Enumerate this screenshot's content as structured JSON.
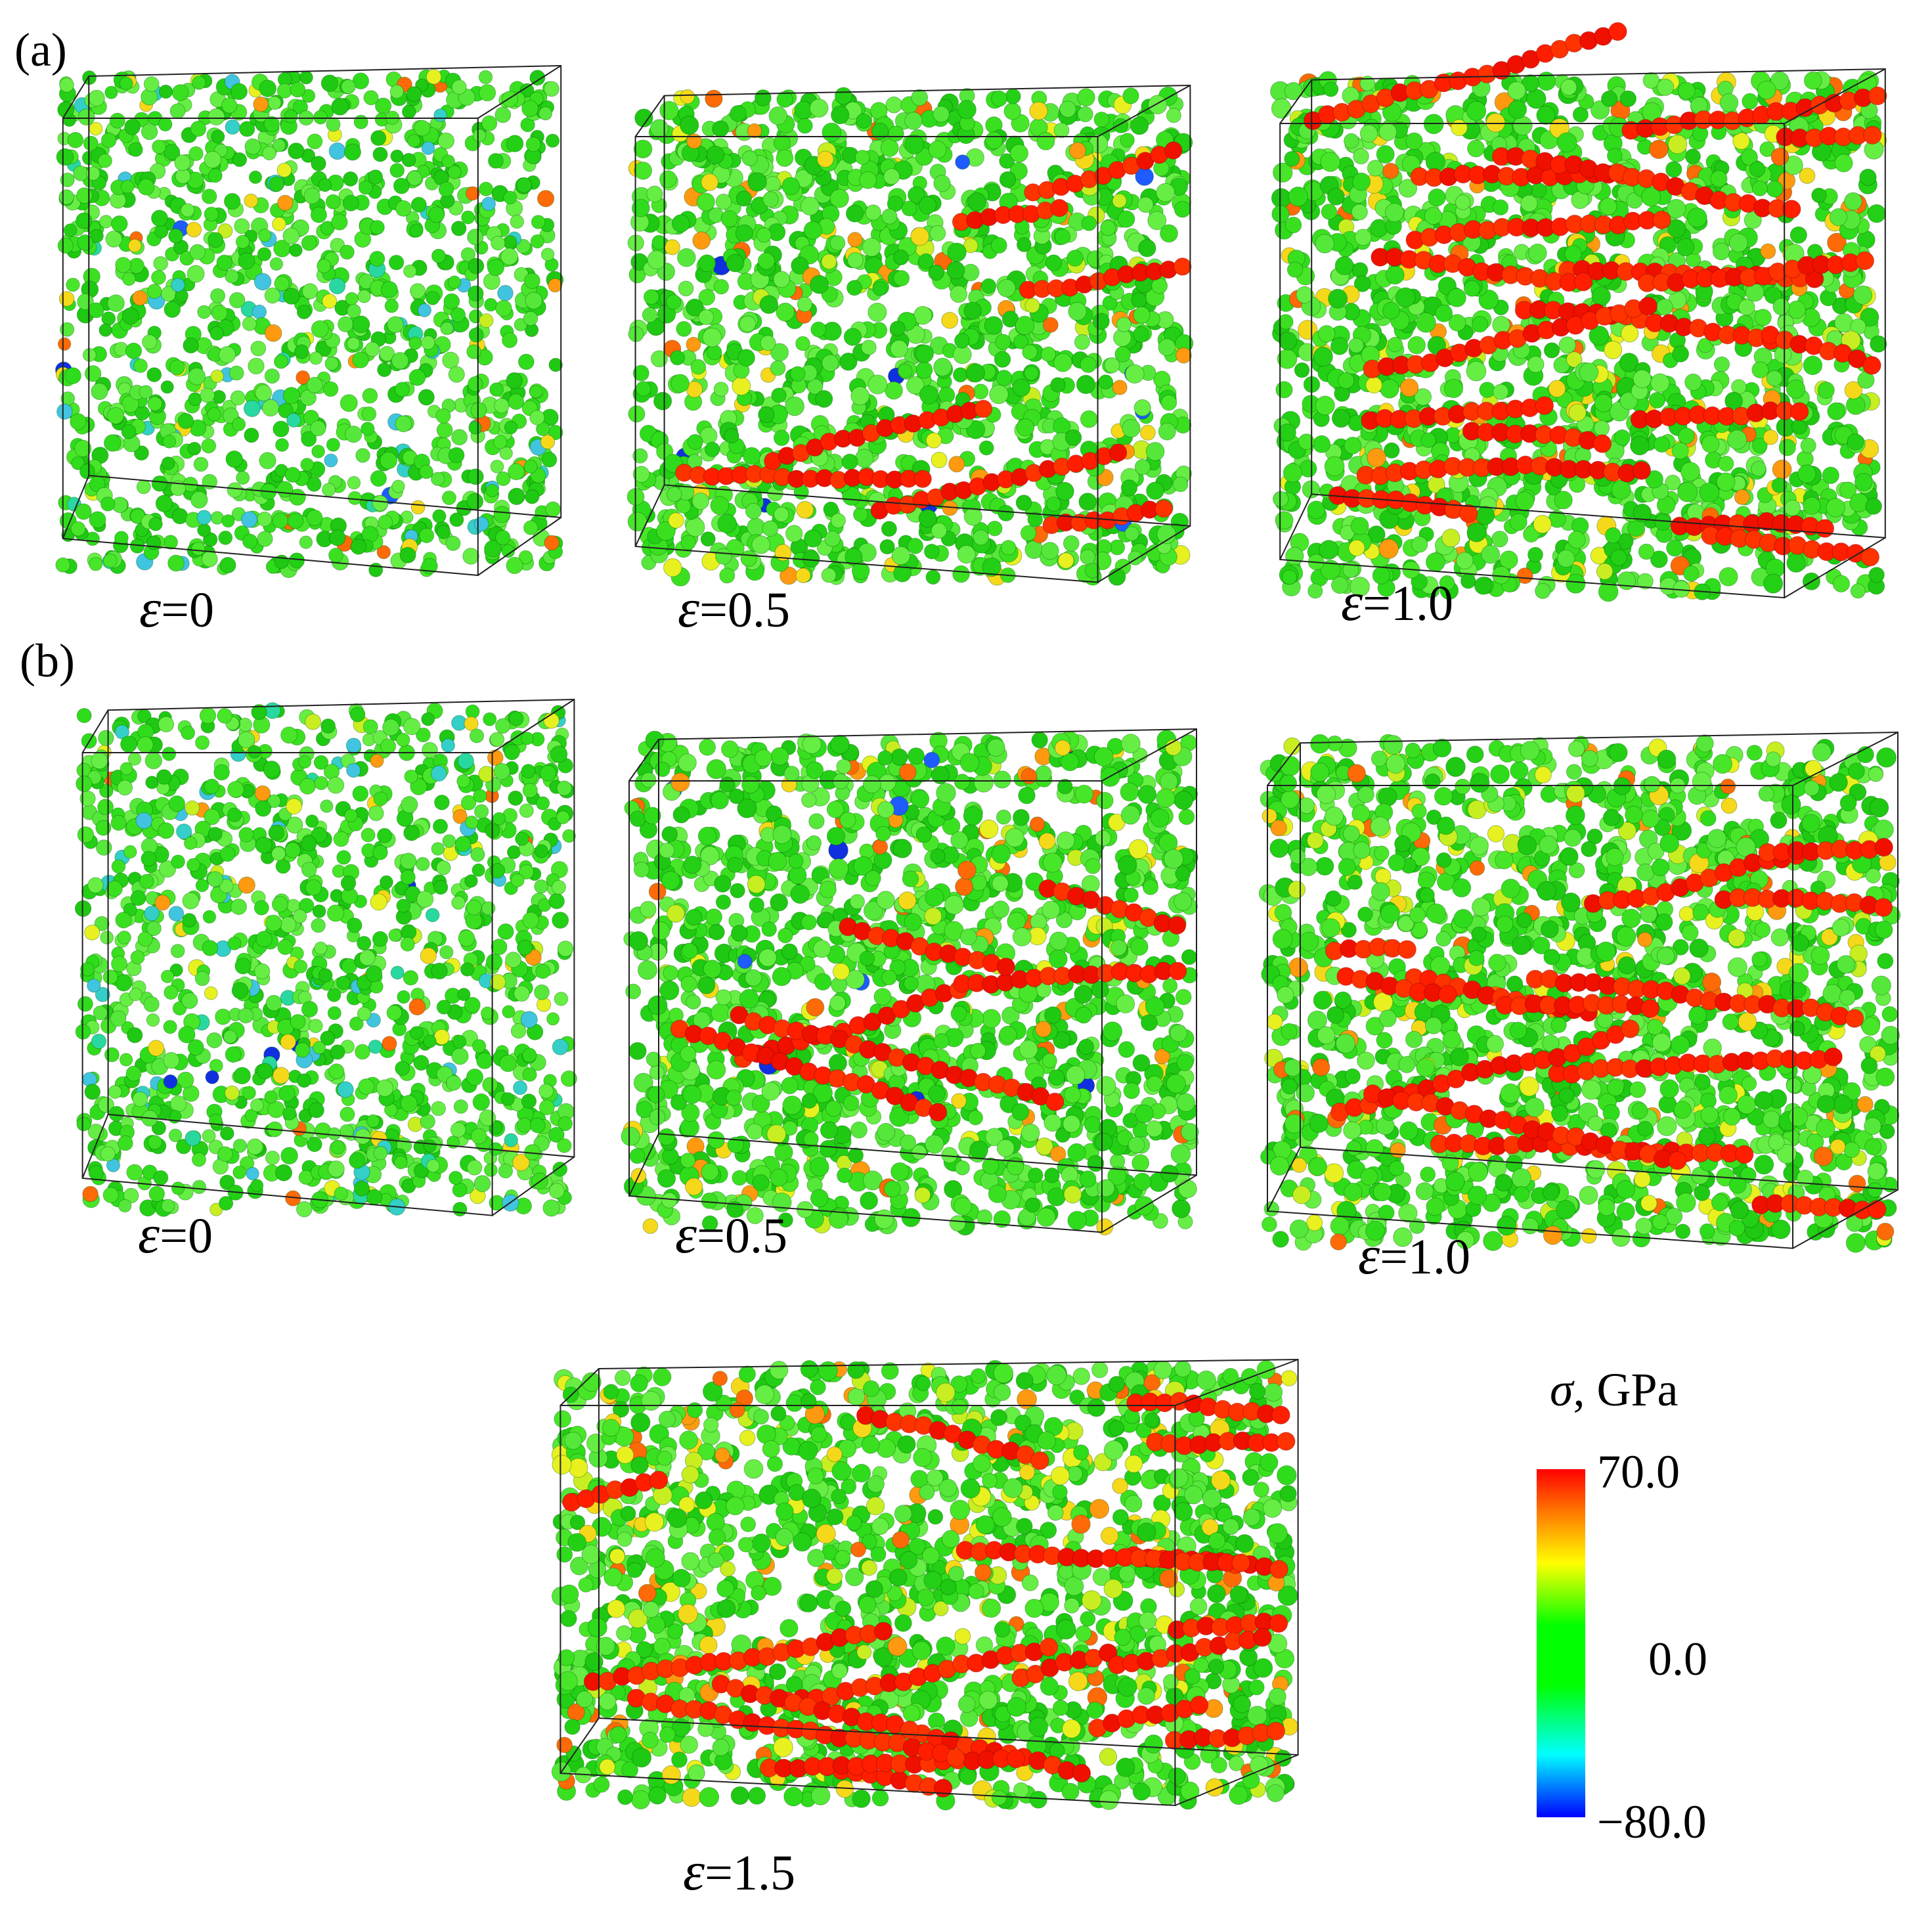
{
  "panels": {
    "a": {
      "label": "(a)"
    },
    "b": {
      "label": "(b)"
    }
  },
  "snapshots": [
    {
      "id": "a0",
      "panel": "a",
      "strain_symbol": "ε",
      "strain_text": "=0",
      "strain": 0.0,
      "red_fraction": 0.0
    },
    {
      "id": "a05",
      "panel": "a",
      "strain_symbol": "ε",
      "strain_text": "=0.5",
      "strain": 0.5,
      "red_fraction": 0.12
    },
    {
      "id": "a10",
      "panel": "a",
      "strain_symbol": "ε",
      "strain_text": "=1.0",
      "strain": 1.0,
      "red_fraction": 0.32
    },
    {
      "id": "b0",
      "panel": "b",
      "strain_symbol": "ε",
      "strain_text": "=0",
      "strain": 0.0,
      "red_fraction": 0.0
    },
    {
      "id": "b05",
      "panel": "b",
      "strain_symbol": "ε",
      "strain_text": "=0.5",
      "strain": 0.5,
      "red_fraction": 0.1
    },
    {
      "id": "b10",
      "panel": "b",
      "strain_symbol": "ε",
      "strain_text": "=1.0",
      "strain": 1.0,
      "red_fraction": 0.22
    },
    {
      "id": "b15",
      "panel": "b",
      "strain_symbol": "ε",
      "strain_text": "=1.5",
      "strain": 1.5,
      "red_fraction": 0.3
    }
  ],
  "colorbar": {
    "symbol": "σ",
    "title_rest": ", GPa",
    "max_label": "70.0",
    "mid_label": "0.0",
    "min_label": "−80.0",
    "max": 70.0,
    "mid": 0.0,
    "min": -80.0,
    "colors": [
      "#ff0000",
      "#ff7f00",
      "#ffff00",
      "#00ff00",
      "#00ffff",
      "#0000ff"
    ]
  }
}
